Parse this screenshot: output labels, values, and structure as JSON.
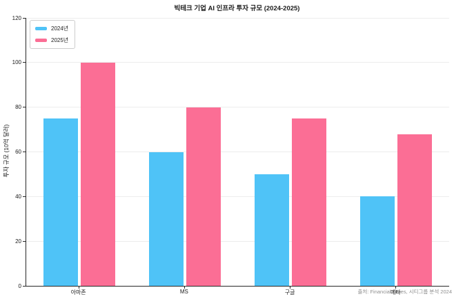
{
  "source_note": "출처: Financial Times, 시티그룹 분석 2024",
  "colors": {
    "series_2024": "#4FC3F7",
    "series_2025": "#FB6E95",
    "axis": "#262626",
    "grid": "#ececec",
    "source_text": "#8f8f8f"
  },
  "chart_data": {
    "type": "bar",
    "title": "빅테크 기업 AI 인프라 투자 규모 (2024-2025)",
    "categories": [
      "아마존",
      "MS",
      "구글",
      "메타"
    ],
    "series": [
      {
        "name": "2024년",
        "color": "#4FC3F7",
        "values": [
          75,
          60,
          50,
          40
        ]
      },
      {
        "name": "2025년",
        "color": "#FB6E95",
        "values": [
          100,
          80,
          75,
          68
        ]
      }
    ],
    "xlabel": "",
    "ylabel": "투자 규모 (10억 달러)",
    "ylim": [
      0,
      120
    ],
    "ytick_step": 20,
    "grid": true,
    "legend_position": "upper-left"
  }
}
